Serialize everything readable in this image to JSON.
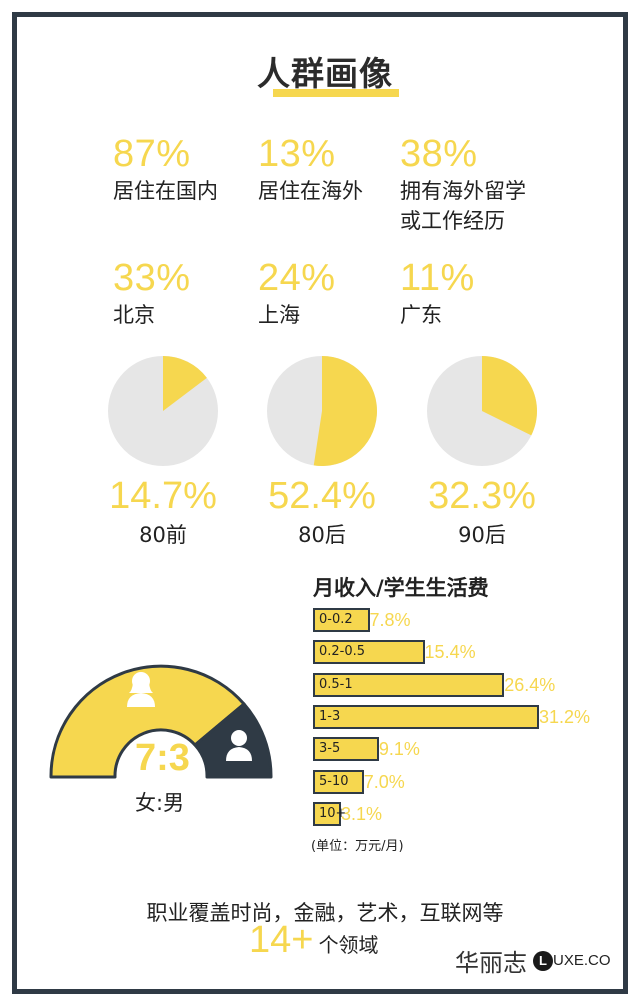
{
  "title": "人群画像",
  "stats_row1": [
    {
      "value": "87%",
      "label": "居住在国内"
    },
    {
      "value": "13%",
      "label": "居住在海外"
    },
    {
      "value": "38%",
      "label_lines": [
        "拥有海外留学",
        "或工作经历"
      ]
    }
  ],
  "stats_row2": [
    {
      "value": "33%",
      "label": "北京"
    },
    {
      "value": "24%",
      "label": "上海"
    },
    {
      "value": "11%",
      "label": "广东"
    }
  ],
  "age_pies": [
    {
      "value_text": "14.7%",
      "fraction": 0.147,
      "label": "80前"
    },
    {
      "value_text": "52.4%",
      "fraction": 0.524,
      "label": "80后"
    },
    {
      "value_text": "32.3%",
      "fraction": 0.323,
      "label": "90后"
    }
  ],
  "gender": {
    "ratio": "7:3",
    "label": "女:男",
    "female_share": 0.7,
    "female_icon": "female-user-icon",
    "male_icon": "male-user-icon"
  },
  "chart_data": {
    "type": "bar",
    "title": "月收入/学生生活费",
    "categories": [
      "0-0.2",
      "0.2-0.5",
      "0.5-1",
      "1-3",
      "3-5",
      "5-10",
      "10+"
    ],
    "values": [
      7.8,
      15.4,
      26.4,
      31.2,
      9.1,
      7.0,
      3.1
    ],
    "value_labels": [
      "7.8%",
      "15.4%",
      "26.4%",
      "31.2%",
      "9.1%",
      "7.0%",
      "3.1%"
    ],
    "unit_note": "(单位：万元/月)",
    "orientation": "horizontal",
    "grid": false,
    "legend": "none"
  },
  "footer": {
    "line1": "职业覆盖时尚，金融，艺术，互联网等",
    "count": "14+",
    "count_suffix": "个领域"
  },
  "brand": {
    "cn": "华丽志",
    "logo_letter": "L",
    "en": "UXE.CO"
  },
  "colors": {
    "accent": "#f6d74f",
    "dark": "#2f3a45",
    "pie_bg": "#e6e6e6",
    "text": "#222222"
  }
}
